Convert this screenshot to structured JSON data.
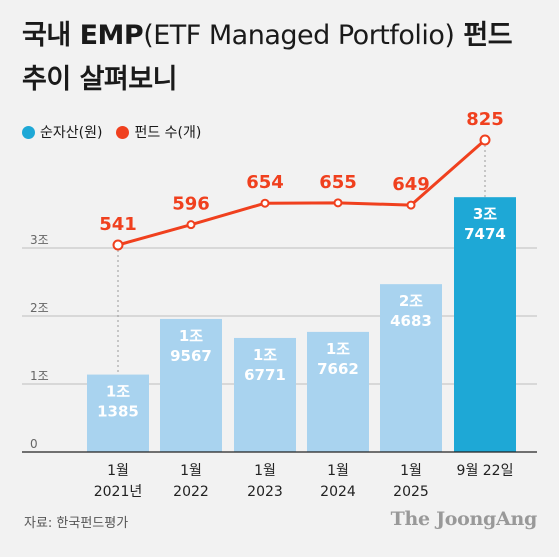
{
  "header": {
    "title_line1_bold_a": "국내 EMP",
    "title_line1_light": "(ETF Managed Portfolio)",
    "title_line1_bold_b": " 펀드",
    "title_line2": "추이 살펴보니"
  },
  "colors": {
    "bar": "#a9d3ef",
    "bar_highlight": "#1ea8d6",
    "line": "#f0401e",
    "grid": "#bdbdbd"
  },
  "footer": {
    "source": "자료: 한국펀드평가",
    "brand": "The JoongAng"
  },
  "chart_data": {
    "type": "bar",
    "title": "국내 EMP(ETF Managed Portfolio) 펀드 추이 살펴보니",
    "legend": [
      "순자산(원)",
      "펀드 수(개)"
    ],
    "legend_position": "top-left",
    "categories": [
      [
        "1월",
        "2021년"
      ],
      [
        "1월",
        "2022"
      ],
      [
        "1월",
        "2023"
      ],
      [
        "1월",
        "2024"
      ],
      [
        "1월",
        "2025"
      ],
      [
        "9월 22일",
        ""
      ]
    ],
    "y_ticks": [
      {
        "value": 0,
        "label": "0"
      },
      {
        "value": 1,
        "label": "1조"
      },
      {
        "value": 2,
        "label": "2조"
      },
      {
        "value": 3,
        "label": "3조"
      }
    ],
    "ylim": [
      0,
      3.9
    ],
    "grid": true,
    "series": [
      {
        "name": "순자산(원)",
        "type": "bar",
        "values": [
          1.1385,
          1.9567,
          1.6771,
          1.7662,
          2.4683,
          3.7474
        ],
        "labels": [
          [
            "1조",
            "1385"
          ],
          [
            "1조",
            "9567"
          ],
          [
            "1조",
            "6771"
          ],
          [
            "1조",
            "7662"
          ],
          [
            "2조",
            "4683"
          ],
          [
            "3조",
            "7474"
          ]
        ]
      },
      {
        "name": "펀드 수(개)",
        "type": "line",
        "values": [
          541,
          596,
          654,
          655,
          649,
          825
        ],
        "labels": [
          "541",
          "596",
          "654",
          "655",
          "649",
          "825"
        ]
      }
    ]
  }
}
